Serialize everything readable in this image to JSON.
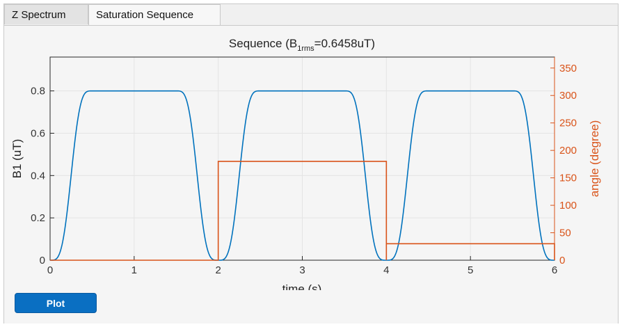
{
  "tabs": [
    {
      "label": "Z Spectrum",
      "active": false
    },
    {
      "label": "Saturation Sequence",
      "active": true
    }
  ],
  "plot_button": {
    "label": "Plot"
  },
  "colors": {
    "left_series": "#0072bd",
    "right_series": "#d95319",
    "button": "#0a6fc2"
  },
  "chart_data": {
    "type": "line",
    "title_parts": {
      "prefix": "Sequence  (B",
      "subscript": "1rms",
      "suffix": "=0.6458uT)"
    },
    "xlabel": "time (s)",
    "ylabel_left": "B1 (uT)",
    "ylabel_right": "angle (degree)",
    "xlim": [
      0,
      6
    ],
    "ylim_left": [
      0,
      0.96
    ],
    "ylim_right": [
      0,
      370
    ],
    "x_ticks": [
      "0",
      "1",
      "2",
      "3",
      "4",
      "5",
      "6"
    ],
    "y_left_ticks": [
      "0",
      "0.2",
      "0.4",
      "0.6",
      "0.8"
    ],
    "y_right_ticks": [
      "0",
      "50",
      "100",
      "150",
      "200",
      "250",
      "300",
      "350"
    ],
    "grid": true,
    "series": [
      {
        "name": "B1",
        "axis": "left",
        "pulses": [
          {
            "start": 0,
            "end": 2,
            "peak": 0.8,
            "flat_start": 0.5,
            "flat_end": 1.5
          },
          {
            "start": 2,
            "end": 4,
            "peak": 0.8,
            "flat_start": 2.5,
            "flat_end": 3.5
          },
          {
            "start": 4,
            "end": 6,
            "peak": 0.8,
            "flat_start": 4.5,
            "flat_end": 5.5
          }
        ]
      },
      {
        "name": "angle",
        "axis": "right",
        "steps": [
          {
            "x": [
              0,
              2
            ],
            "y": 0
          },
          {
            "x": [
              2,
              4
            ],
            "y": 180
          },
          {
            "x": [
              4,
              6
            ],
            "y": 30
          }
        ]
      }
    ]
  }
}
